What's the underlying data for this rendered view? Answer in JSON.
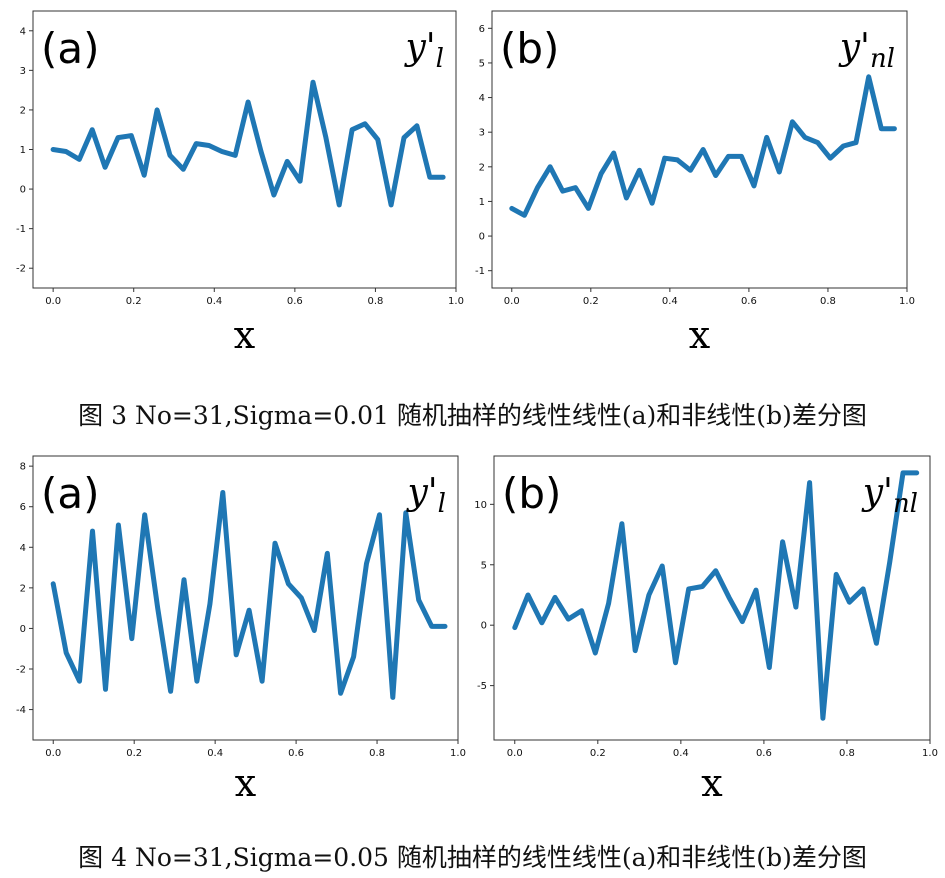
{
  "figures": [
    {
      "caption": "图 3 No=31,Sigma=0.01 随机抽样的线性线性(a)和非线性(b)差分图"
    },
    {
      "caption": "图 4 No=31,Sigma=0.05 随机抽样的线性线性(a)和非线性(b)差分图"
    }
  ],
  "colors": {
    "line": "#1f77b4",
    "axis": "#333333",
    "text": "#111111"
  },
  "chart_data": [
    {
      "type": "line",
      "panel_label": "(a)",
      "series_label": "y'_l",
      "xlabel": "x",
      "xlim": [
        -0.05,
        1.0
      ],
      "ylim": [
        -2.5,
        4.5
      ],
      "xticks": [
        0.0,
        0.2,
        0.4,
        0.6,
        0.8,
        1.0
      ],
      "xtick_labels": [
        "0.0",
        "0.2",
        "0.4",
        "0.6",
        "0.8",
        "1.0"
      ],
      "yticks": [
        -2,
        -1,
        0,
        1,
        2,
        3,
        4
      ],
      "ytick_labels": [
        "-2",
        "-1",
        "0",
        "1",
        "2",
        "3",
        "4"
      ],
      "x": [
        0.0,
        0.032,
        0.065,
        0.097,
        0.129,
        0.161,
        0.194,
        0.226,
        0.258,
        0.29,
        0.323,
        0.355,
        0.387,
        0.419,
        0.452,
        0.484,
        0.516,
        0.548,
        0.581,
        0.613,
        0.645,
        0.677,
        0.71,
        0.742,
        0.774,
        0.806,
        0.839,
        0.871,
        0.903,
        0.935,
        0.968
      ],
      "y": [
        1.0,
        0.95,
        0.75,
        1.5,
        0.55,
        1.3,
        1.35,
        0.35,
        2.0,
        0.85,
        0.5,
        1.15,
        1.1,
        0.95,
        0.85,
        2.2,
        0.95,
        -0.15,
        0.7,
        0.2,
        2.7,
        1.3,
        -0.4,
        1.5,
        1.65,
        1.25,
        -0.4,
        1.3,
        1.6,
        0.3,
        0.3
      ]
    },
    {
      "type": "line",
      "panel_label": "(b)",
      "series_label": "y'_nl",
      "xlabel": "x",
      "xlim": [
        -0.05,
        1.0
      ],
      "ylim": [
        -1.5,
        6.5
      ],
      "xticks": [
        0.0,
        0.2,
        0.4,
        0.6,
        0.8,
        1.0
      ],
      "xtick_labels": [
        "0.0",
        "0.2",
        "0.4",
        "0.6",
        "0.8",
        "1.0"
      ],
      "yticks": [
        -1,
        0,
        1,
        2,
        3,
        4,
        5,
        6
      ],
      "ytick_labels": [
        "-1",
        "0",
        "1",
        "2",
        "3",
        "4",
        "5",
        "6"
      ],
      "x": [
        0.0,
        0.032,
        0.065,
        0.097,
        0.129,
        0.161,
        0.194,
        0.226,
        0.258,
        0.29,
        0.323,
        0.355,
        0.387,
        0.419,
        0.452,
        0.484,
        0.516,
        0.548,
        0.581,
        0.613,
        0.645,
        0.677,
        0.71,
        0.742,
        0.774,
        0.806,
        0.839,
        0.871,
        0.903,
        0.935,
        0.968
      ],
      "y": [
        0.8,
        0.6,
        1.4,
        2.0,
        1.3,
        1.4,
        0.8,
        1.8,
        2.4,
        1.1,
        1.9,
        0.95,
        2.25,
        2.2,
        1.9,
        2.5,
        1.75,
        2.3,
        2.3,
        1.45,
        2.85,
        1.85,
        3.3,
        2.85,
        2.7,
        2.25,
        2.6,
        2.7,
        4.6,
        3.1,
        3.1
      ]
    },
    {
      "type": "line",
      "panel_label": "(a)",
      "series_label": "y'_l",
      "xlabel": "x",
      "xlim": [
        -0.05,
        1.0
      ],
      "ylim": [
        -5.5,
        8.5
      ],
      "xticks": [
        0.0,
        0.2,
        0.4,
        0.6,
        0.8,
        1.0
      ],
      "xtick_labels": [
        "0.0",
        "0.2",
        "0.4",
        "0.6",
        "0.8",
        "1.0"
      ],
      "yticks": [
        -4,
        -2,
        0,
        2,
        4,
        6,
        8
      ],
      "ytick_labels": [
        "-4",
        "-2",
        "0",
        "2",
        "4",
        "6",
        "8"
      ],
      "x": [
        0.0,
        0.032,
        0.065,
        0.097,
        0.129,
        0.161,
        0.194,
        0.226,
        0.258,
        0.29,
        0.323,
        0.355,
        0.387,
        0.419,
        0.452,
        0.484,
        0.516,
        0.548,
        0.581,
        0.613,
        0.645,
        0.677,
        0.71,
        0.742,
        0.774,
        0.806,
        0.839,
        0.871,
        0.903,
        0.935,
        0.968
      ],
      "y": [
        2.2,
        -1.2,
        -2.6,
        4.8,
        -3.0,
        5.1,
        -0.5,
        5.6,
        1.0,
        -3.1,
        2.4,
        -2.6,
        1.2,
        6.7,
        -1.3,
        0.9,
        -2.6,
        4.2,
        2.2,
        1.5,
        -0.1,
        3.7,
        -3.2,
        -1.4,
        3.2,
        5.6,
        -3.4,
        5.7,
        1.4,
        0.1,
        0.1
      ]
    },
    {
      "type": "line",
      "panel_label": "(b)",
      "series_label": "y'_nl",
      "xlabel": "x",
      "xlim": [
        -0.05,
        1.0
      ],
      "ylim": [
        -9.5,
        14.0
      ],
      "xticks": [
        0.0,
        0.2,
        0.4,
        0.6,
        0.8,
        1.0
      ],
      "xtick_labels": [
        "0.0",
        "0.2",
        "0.4",
        "0.6",
        "0.8",
        "1.0"
      ],
      "yticks": [
        -5,
        0,
        5,
        10
      ],
      "ytick_labels": [
        "-5",
        "0",
        "5",
        "10"
      ],
      "x": [
        0.0,
        0.032,
        0.065,
        0.097,
        0.129,
        0.161,
        0.194,
        0.226,
        0.258,
        0.29,
        0.323,
        0.355,
        0.387,
        0.419,
        0.452,
        0.484,
        0.516,
        0.548,
        0.581,
        0.613,
        0.645,
        0.677,
        0.71,
        0.742,
        0.774,
        0.806,
        0.839,
        0.871,
        0.903,
        0.935,
        0.968
      ],
      "y": [
        -0.2,
        2.5,
        0.2,
        2.3,
        0.5,
        1.2,
        -2.3,
        1.8,
        8.4,
        -2.1,
        2.5,
        4.9,
        -3.1,
        3.0,
        3.2,
        4.5,
        2.3,
        0.3,
        2.9,
        -3.5,
        6.9,
        1.5,
        11.8,
        -7.7,
        4.2,
        1.9,
        3.0,
        -1.5,
        5.2,
        12.6,
        12.6
      ]
    }
  ]
}
